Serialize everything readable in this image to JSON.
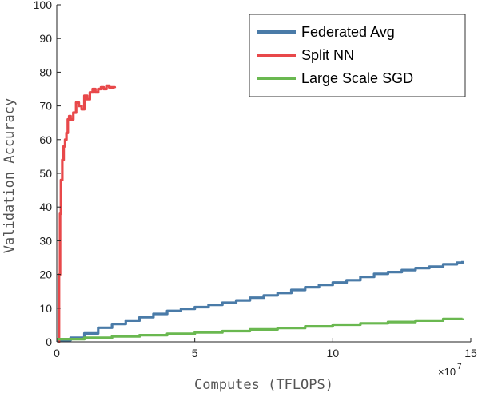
{
  "chart_data": {
    "type": "line",
    "xlabel": "Computes (TFLOPS)",
    "ylabel": "Validation Accuracy",
    "x_exponent_label": "×10",
    "x_exponent_power": "7",
    "xlim": [
      0,
      15
    ],
    "ylim": [
      0,
      100
    ],
    "x_ticks": [
      0,
      5,
      10,
      15
    ],
    "y_ticks": [
      0,
      10,
      20,
      30,
      40,
      50,
      60,
      70,
      80,
      90,
      100
    ],
    "x_tick_labels": [
      "0",
      "5",
      "10",
      "15"
    ],
    "y_tick_labels": [
      "0",
      "10",
      "20",
      "30",
      "40",
      "50",
      "60",
      "70",
      "80",
      "90",
      "100"
    ],
    "grid": false,
    "legend_position": "top-right",
    "series": [
      {
        "name": "Federated Avg",
        "color": "#4a7ba8",
        "x": [
          0,
          0.5,
          1.0,
          1.5,
          2.0,
          2.5,
          3.0,
          3.5,
          4.0,
          4.5,
          5.0,
          5.5,
          6.0,
          6.5,
          7.0,
          7.5,
          8.0,
          8.5,
          9.0,
          9.5,
          10.0,
          10.5,
          11.0,
          11.5,
          12.0,
          12.5,
          13.0,
          13.5,
          14.0,
          14.5,
          14.7
        ],
        "y": [
          0.5,
          1.2,
          2.5,
          4.2,
          5.3,
          6.3,
          7.3,
          8.3,
          9.2,
          9.8,
          10.3,
          11.0,
          11.6,
          12.3,
          13.1,
          13.8,
          14.5,
          15.4,
          16.2,
          16.9,
          17.6,
          18.3,
          19.3,
          20.2,
          20.7,
          21.3,
          21.9,
          22.3,
          23.0,
          23.5,
          24.0
        ]
      },
      {
        "name": "Split NN",
        "color": "#e8484a",
        "x": [
          0.05,
          0.08,
          0.12,
          0.15,
          0.2,
          0.25,
          0.3,
          0.35,
          0.4,
          0.45,
          0.5,
          0.6,
          0.7,
          0.8,
          0.9,
          1.0,
          1.1,
          1.2,
          1.3,
          1.4,
          1.5,
          1.6,
          1.7,
          1.8,
          1.9,
          2.0,
          2.1
        ],
        "y": [
          0,
          20,
          38,
          48,
          54,
          58,
          60,
          62,
          66,
          67,
          66,
          68,
          71,
          70,
          69,
          73,
          72,
          74,
          75,
          74,
          75,
          75.5,
          75,
          76,
          75.5,
          75.5,
          75.3
        ]
      },
      {
        "name": "Large Scale SGD",
        "color": "#6ab850",
        "x": [
          0,
          1.0,
          2.0,
          3.0,
          4.0,
          5.0,
          6.0,
          7.0,
          8.0,
          9.0,
          10.0,
          11.0,
          12.0,
          13.0,
          14.0,
          14.7
        ],
        "y": [
          0.8,
          1.2,
          1.6,
          2.0,
          2.4,
          2.8,
          3.2,
          3.7,
          4.1,
          4.6,
          5.1,
          5.5,
          5.9,
          6.3,
          6.8,
          7.0
        ]
      }
    ]
  }
}
